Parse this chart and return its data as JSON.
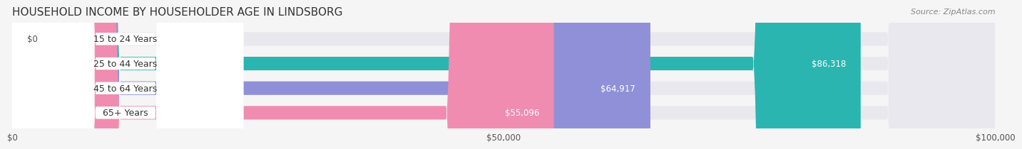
{
  "title": "HOUSEHOLD INCOME BY HOUSEHOLDER AGE IN LINDSBORG",
  "source": "Source: ZipAtlas.com",
  "categories": [
    "15 to 24 Years",
    "25 to 44 Years",
    "45 to 64 Years",
    "65+ Years"
  ],
  "values": [
    0,
    86318,
    64917,
    55096
  ],
  "bar_colors": [
    "#c4a8d4",
    "#2ab5b0",
    "#9090d8",
    "#f08cb0"
  ],
  "bar_bg_color": "#e8e8ee",
  "xlim": [
    0,
    100000
  ],
  "xticks": [
    0,
    50000,
    100000
  ],
  "xtick_labels": [
    "$0",
    "$50,000",
    "$100,000"
  ],
  "title_fontsize": 11,
  "source_fontsize": 8,
  "bar_height": 0.55,
  "fig_width": 14.06,
  "fig_height": 2.33,
  "background_color": "#f5f5f5"
}
